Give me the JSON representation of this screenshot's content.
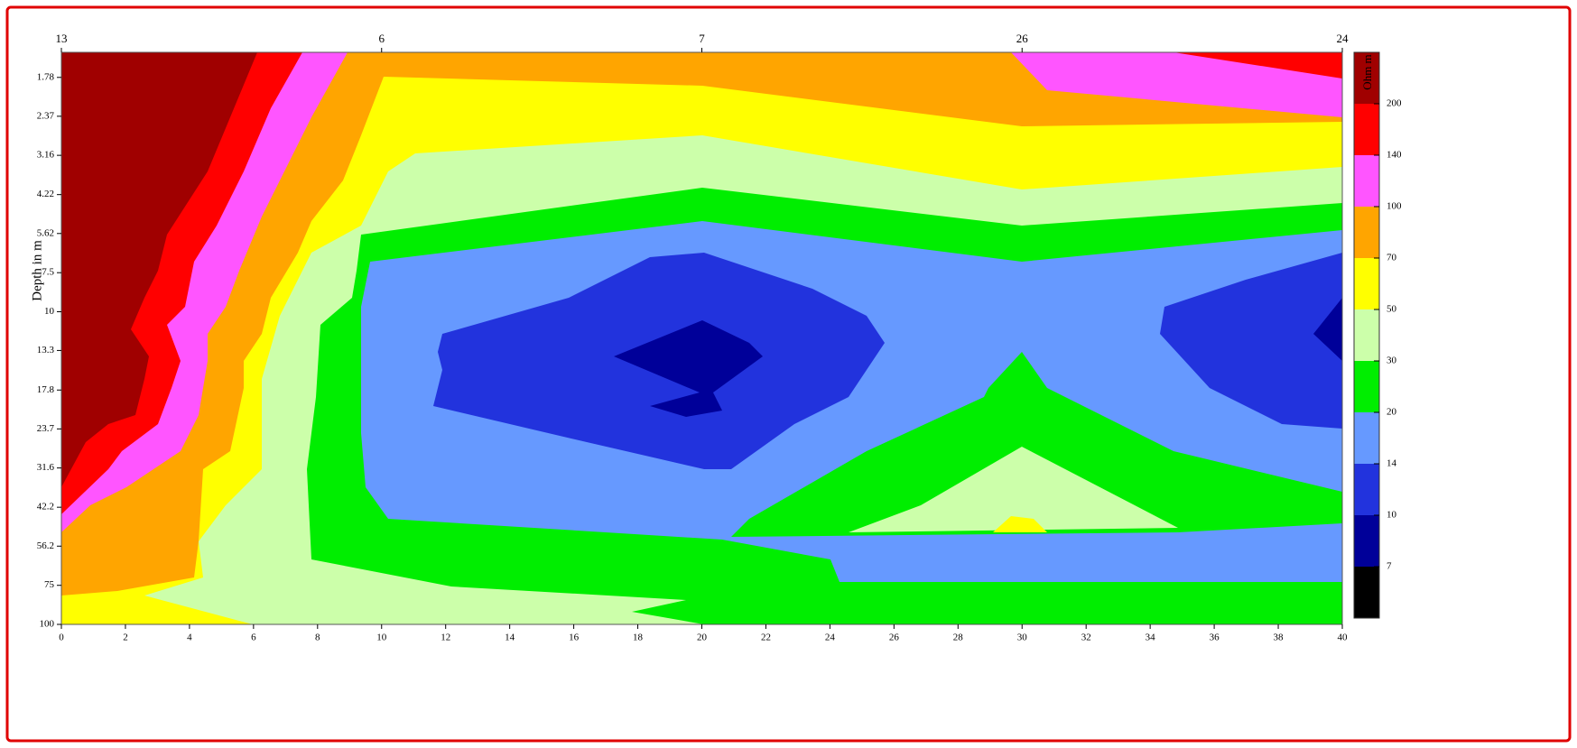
{
  "chart_data": {
    "type": "contour",
    "y_label": "Depth in m",
    "xlim": [
      0,
      40
    ],
    "xticks": [
      0,
      2,
      4,
      6,
      8,
      10,
      12,
      14,
      16,
      18,
      20,
      22,
      24,
      26,
      28,
      30,
      32,
      34,
      36,
      38,
      40
    ],
    "top_xticks": [
      {
        "value": 0,
        "label": "13"
      },
      {
        "value": 10,
        "label": "6"
      },
      {
        "value": 20,
        "label": "7"
      },
      {
        "value": 30,
        "label": "26"
      },
      {
        "value": 40,
        "label": "24"
      }
    ],
    "ylim": [
      1.48,
      100
    ],
    "y_log": true,
    "y_inverted": true,
    "yticks": [
      1.78,
      2.37,
      3.16,
      4.22,
      5.62,
      7.5,
      10,
      13.3,
      17.8,
      23.7,
      31.6,
      42.2,
      56.2,
      75,
      100
    ],
    "colorbar": {
      "label": "Ohm m",
      "levels": [
        200,
        140,
        100,
        70,
        50,
        30,
        20,
        14,
        10,
        7
      ],
      "colors": [
        "#a00000",
        "#ff0000",
        "#ff55ff",
        "#ffa500",
        "#ffff00",
        "#ccffaa",
        "#00ee00",
        "#6699ff",
        "#2233dd",
        "#000099",
        "#000000"
      ]
    }
  }
}
